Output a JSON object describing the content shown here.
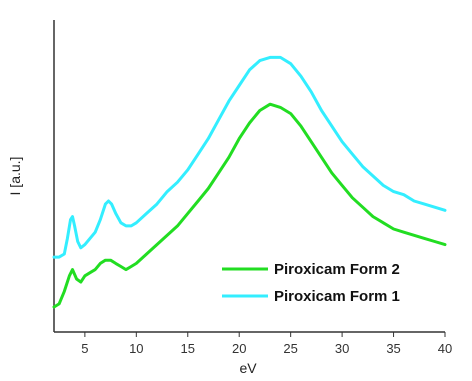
{
  "chart_data": {
    "type": "line",
    "xlabel": "eV",
    "ylabel": "I [a.u.]",
    "xlim": [
      2,
      40
    ],
    "ylim": [
      0,
      1
    ],
    "x_ticks": [
      5,
      10,
      15,
      20,
      25,
      30,
      35,
      40
    ],
    "y_ticks_shown": false,
    "legend_position": "bottom-right",
    "series": [
      {
        "name": "Piroxicam Form 2",
        "color": "#22dd22",
        "points": [
          [
            2,
            0.08
          ],
          [
            2.5,
            0.09
          ],
          [
            3,
            0.13
          ],
          [
            3.5,
            0.18
          ],
          [
            3.8,
            0.2
          ],
          [
            4.2,
            0.17
          ],
          [
            4.6,
            0.16
          ],
          [
            5,
            0.18
          ],
          [
            5.5,
            0.19
          ],
          [
            6,
            0.2
          ],
          [
            6.5,
            0.22
          ],
          [
            7,
            0.23
          ],
          [
            7.5,
            0.23
          ],
          [
            8,
            0.22
          ],
          [
            8.5,
            0.21
          ],
          [
            9,
            0.2
          ],
          [
            9.5,
            0.21
          ],
          [
            10,
            0.22
          ],
          [
            11,
            0.25
          ],
          [
            12,
            0.28
          ],
          [
            13,
            0.31
          ],
          [
            14,
            0.34
          ],
          [
            15,
            0.38
          ],
          [
            16,
            0.42
          ],
          [
            17,
            0.46
          ],
          [
            18,
            0.51
          ],
          [
            19,
            0.56
          ],
          [
            20,
            0.62
          ],
          [
            21,
            0.67
          ],
          [
            22,
            0.71
          ],
          [
            23,
            0.73
          ],
          [
            24,
            0.72
          ],
          [
            25,
            0.7
          ],
          [
            26,
            0.66
          ],
          [
            27,
            0.61
          ],
          [
            28,
            0.56
          ],
          [
            29,
            0.51
          ],
          [
            30,
            0.47
          ],
          [
            31,
            0.43
          ],
          [
            32,
            0.4
          ],
          [
            33,
            0.37
          ],
          [
            34,
            0.35
          ],
          [
            35,
            0.33
          ],
          [
            36,
            0.32
          ],
          [
            37,
            0.31
          ],
          [
            38,
            0.3
          ],
          [
            39,
            0.29
          ],
          [
            40,
            0.28
          ]
        ]
      },
      {
        "name": "Piroxicam Form 1",
        "color": "#33eeff",
        "points": [
          [
            2,
            0.24
          ],
          [
            2.5,
            0.24
          ],
          [
            3,
            0.25
          ],
          [
            3.3,
            0.3
          ],
          [
            3.6,
            0.36
          ],
          [
            3.8,
            0.37
          ],
          [
            4,
            0.34
          ],
          [
            4.3,
            0.29
          ],
          [
            4.6,
            0.27
          ],
          [
            5,
            0.28
          ],
          [
            5.5,
            0.3
          ],
          [
            6,
            0.32
          ],
          [
            6.5,
            0.36
          ],
          [
            7,
            0.41
          ],
          [
            7.3,
            0.42
          ],
          [
            7.6,
            0.41
          ],
          [
            8,
            0.38
          ],
          [
            8.5,
            0.35
          ],
          [
            9,
            0.34
          ],
          [
            9.5,
            0.34
          ],
          [
            10,
            0.35
          ],
          [
            11,
            0.38
          ],
          [
            12,
            0.41
          ],
          [
            13,
            0.45
          ],
          [
            14,
            0.48
          ],
          [
            15,
            0.52
          ],
          [
            16,
            0.57
          ],
          [
            17,
            0.62
          ],
          [
            18,
            0.68
          ],
          [
            19,
            0.74
          ],
          [
            20,
            0.79
          ],
          [
            21,
            0.84
          ],
          [
            22,
            0.87
          ],
          [
            23,
            0.88
          ],
          [
            24,
            0.88
          ],
          [
            25,
            0.86
          ],
          [
            26,
            0.82
          ],
          [
            27,
            0.77
          ],
          [
            28,
            0.71
          ],
          [
            29,
            0.66
          ],
          [
            30,
            0.61
          ],
          [
            31,
            0.57
          ],
          [
            32,
            0.53
          ],
          [
            33,
            0.5
          ],
          [
            34,
            0.47
          ],
          [
            35,
            0.45
          ],
          [
            36,
            0.44
          ],
          [
            37,
            0.42
          ],
          [
            38,
            0.41
          ],
          [
            39,
            0.4
          ],
          [
            40,
            0.39
          ]
        ]
      }
    ]
  }
}
